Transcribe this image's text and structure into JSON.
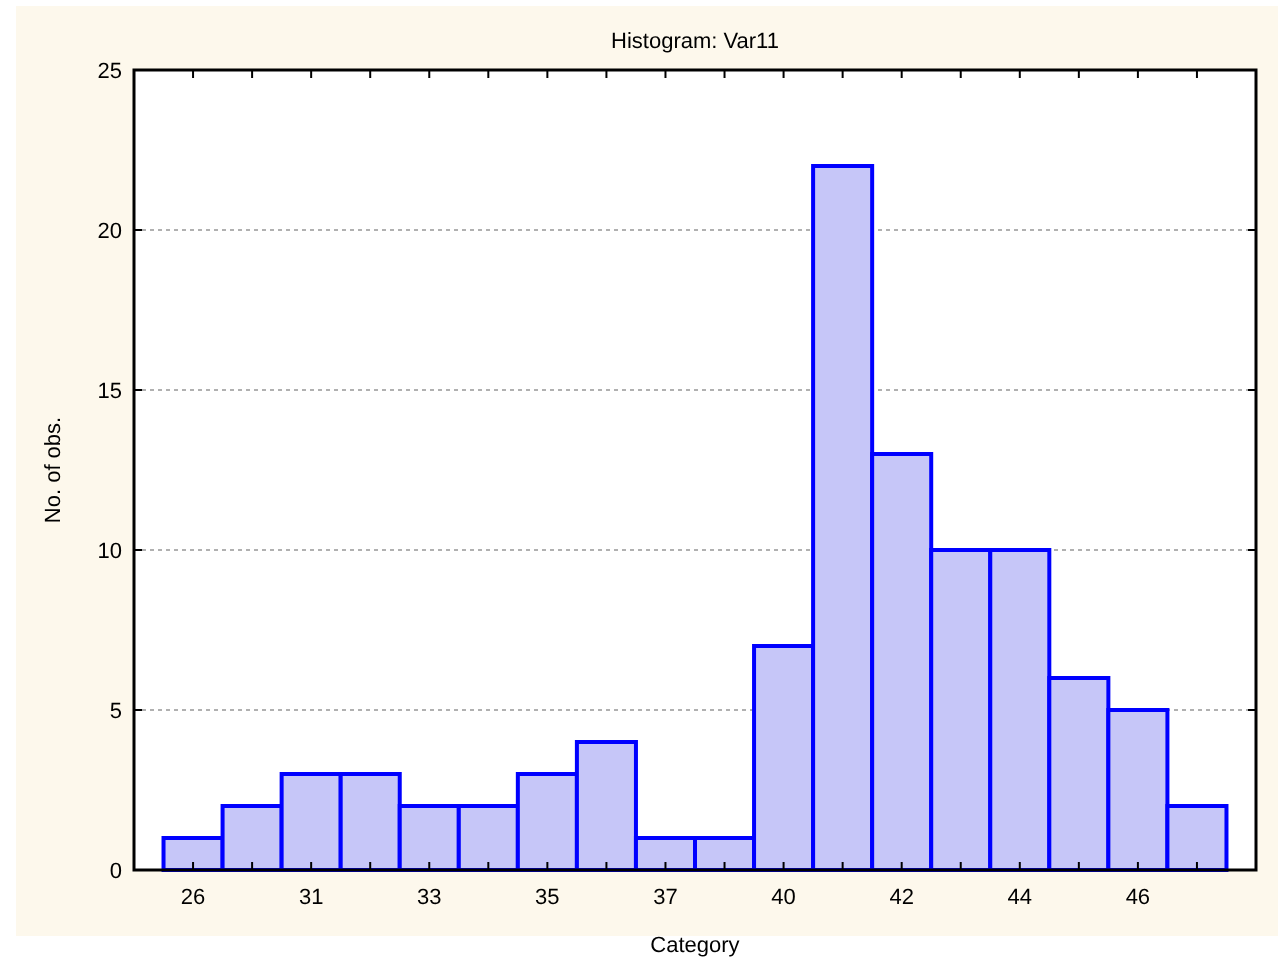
{
  "chart_data": {
    "type": "bar",
    "title": "Histogram: Var11",
    "xlabel": "Category",
    "ylabel": "No. of obs.",
    "categories": [
      "26",
      null,
      "31",
      null,
      "33",
      null,
      "35",
      null,
      "37",
      null,
      "40",
      null,
      "42",
      null,
      "44",
      null,
      "46",
      null
    ],
    "values": [
      1,
      2,
      3,
      3,
      2,
      2,
      3,
      4,
      1,
      1,
      7,
      22,
      13,
      10,
      10,
      6,
      5,
      2
    ],
    "color": "#c6c6f8",
    "ylim": [
      0,
      25
    ],
    "yticks": [
      0,
      5,
      10,
      15,
      20,
      25
    ],
    "grid": "y"
  }
}
